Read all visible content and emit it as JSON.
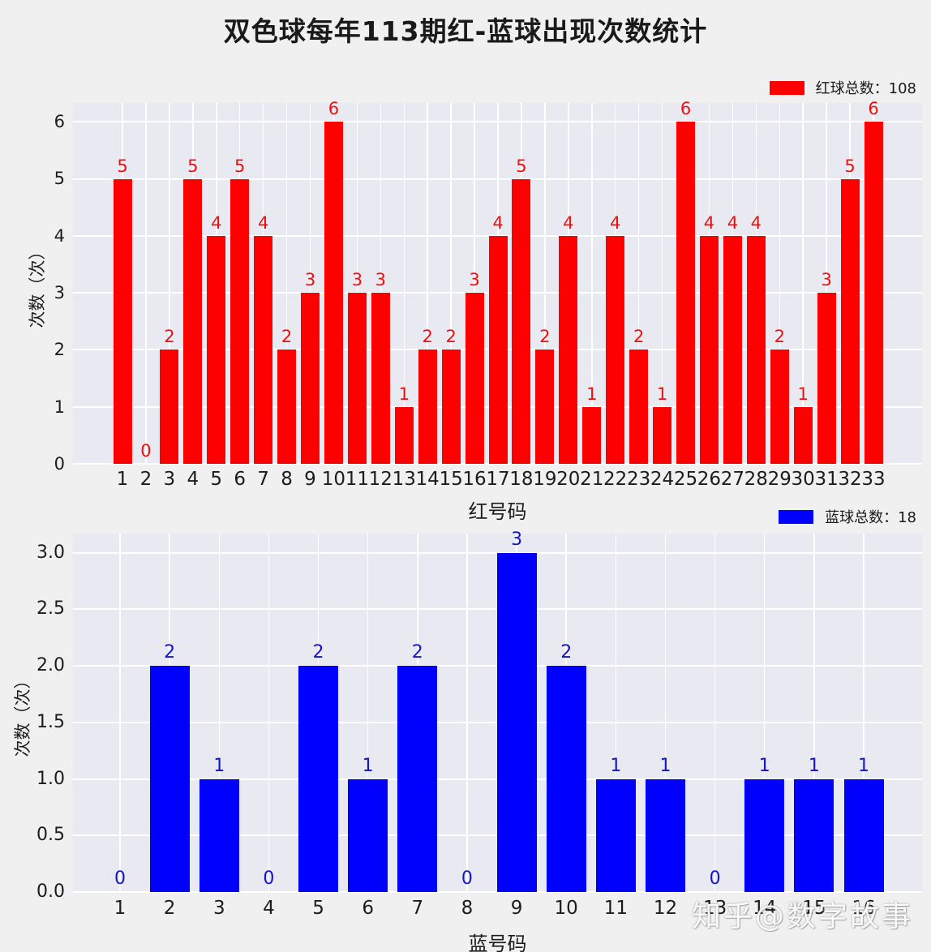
{
  "title": "双色球每年113期红-蓝球出现次数统计",
  "watermark": "知乎@数字故事",
  "colors": {
    "figure_bg": "#f0f0f1",
    "plot_bg": "#e9e9f2",
    "grid": "#ffffff",
    "red": "#fe0000",
    "blue": "#0000fe"
  },
  "chart_data": [
    {
      "type": "bar",
      "name": "red-balls",
      "legend": "红球总数：108",
      "total": 108,
      "color": "#fe0000",
      "label_color": "#ee0f0f",
      "categories": [
        "1",
        "2",
        "3",
        "4",
        "5",
        "6",
        "7",
        "8",
        "9",
        "10",
        "11",
        "12",
        "13",
        "14",
        "15",
        "16",
        "17",
        "18",
        "19",
        "20",
        "21",
        "22",
        "23",
        "24",
        "25",
        "26",
        "27",
        "28",
        "29",
        "30",
        "31",
        "32",
        "33"
      ],
      "values": [
        5,
        0,
        2,
        5,
        4,
        5,
        4,
        2,
        3,
        6,
        3,
        3,
        1,
        2,
        2,
        3,
        4,
        5,
        2,
        4,
        1,
        4,
        2,
        1,
        6,
        4,
        4,
        4,
        2,
        1,
        3,
        5,
        6
      ],
      "xlabel": "红号码",
      "ylabel": "次数（次）",
      "ylim": [
        0,
        6.33
      ],
      "yticks": [
        0,
        1,
        2,
        3,
        4,
        5,
        6
      ],
      "ytick_labels": [
        "0",
        "1",
        "2",
        "3",
        "4",
        "5",
        "6"
      ],
      "grid": true,
      "legend_position": "top-right"
    },
    {
      "type": "bar",
      "name": "blue-balls",
      "legend": "蓝球总数：18",
      "total": 18,
      "color": "#0000fe",
      "label_color": "#1414c8",
      "categories": [
        "1",
        "2",
        "3",
        "4",
        "5",
        "6",
        "7",
        "8",
        "9",
        "10",
        "11",
        "12",
        "13",
        "14",
        "15",
        "16"
      ],
      "values": [
        0,
        2,
        1,
        0,
        2,
        1,
        2,
        0,
        3,
        2,
        1,
        1,
        0,
        1,
        1,
        1
      ],
      "xlabel": "蓝号码",
      "ylabel": "次数（次）",
      "ylim": [
        0,
        3.17
      ],
      "yticks": [
        0,
        0.5,
        1,
        1.5,
        2,
        2.5,
        3
      ],
      "ytick_labels": [
        "0.0",
        "0.5",
        "1.0",
        "1.5",
        "2.0",
        "2.5",
        "3.0"
      ],
      "grid": true,
      "legend_position": "top-right"
    }
  ]
}
